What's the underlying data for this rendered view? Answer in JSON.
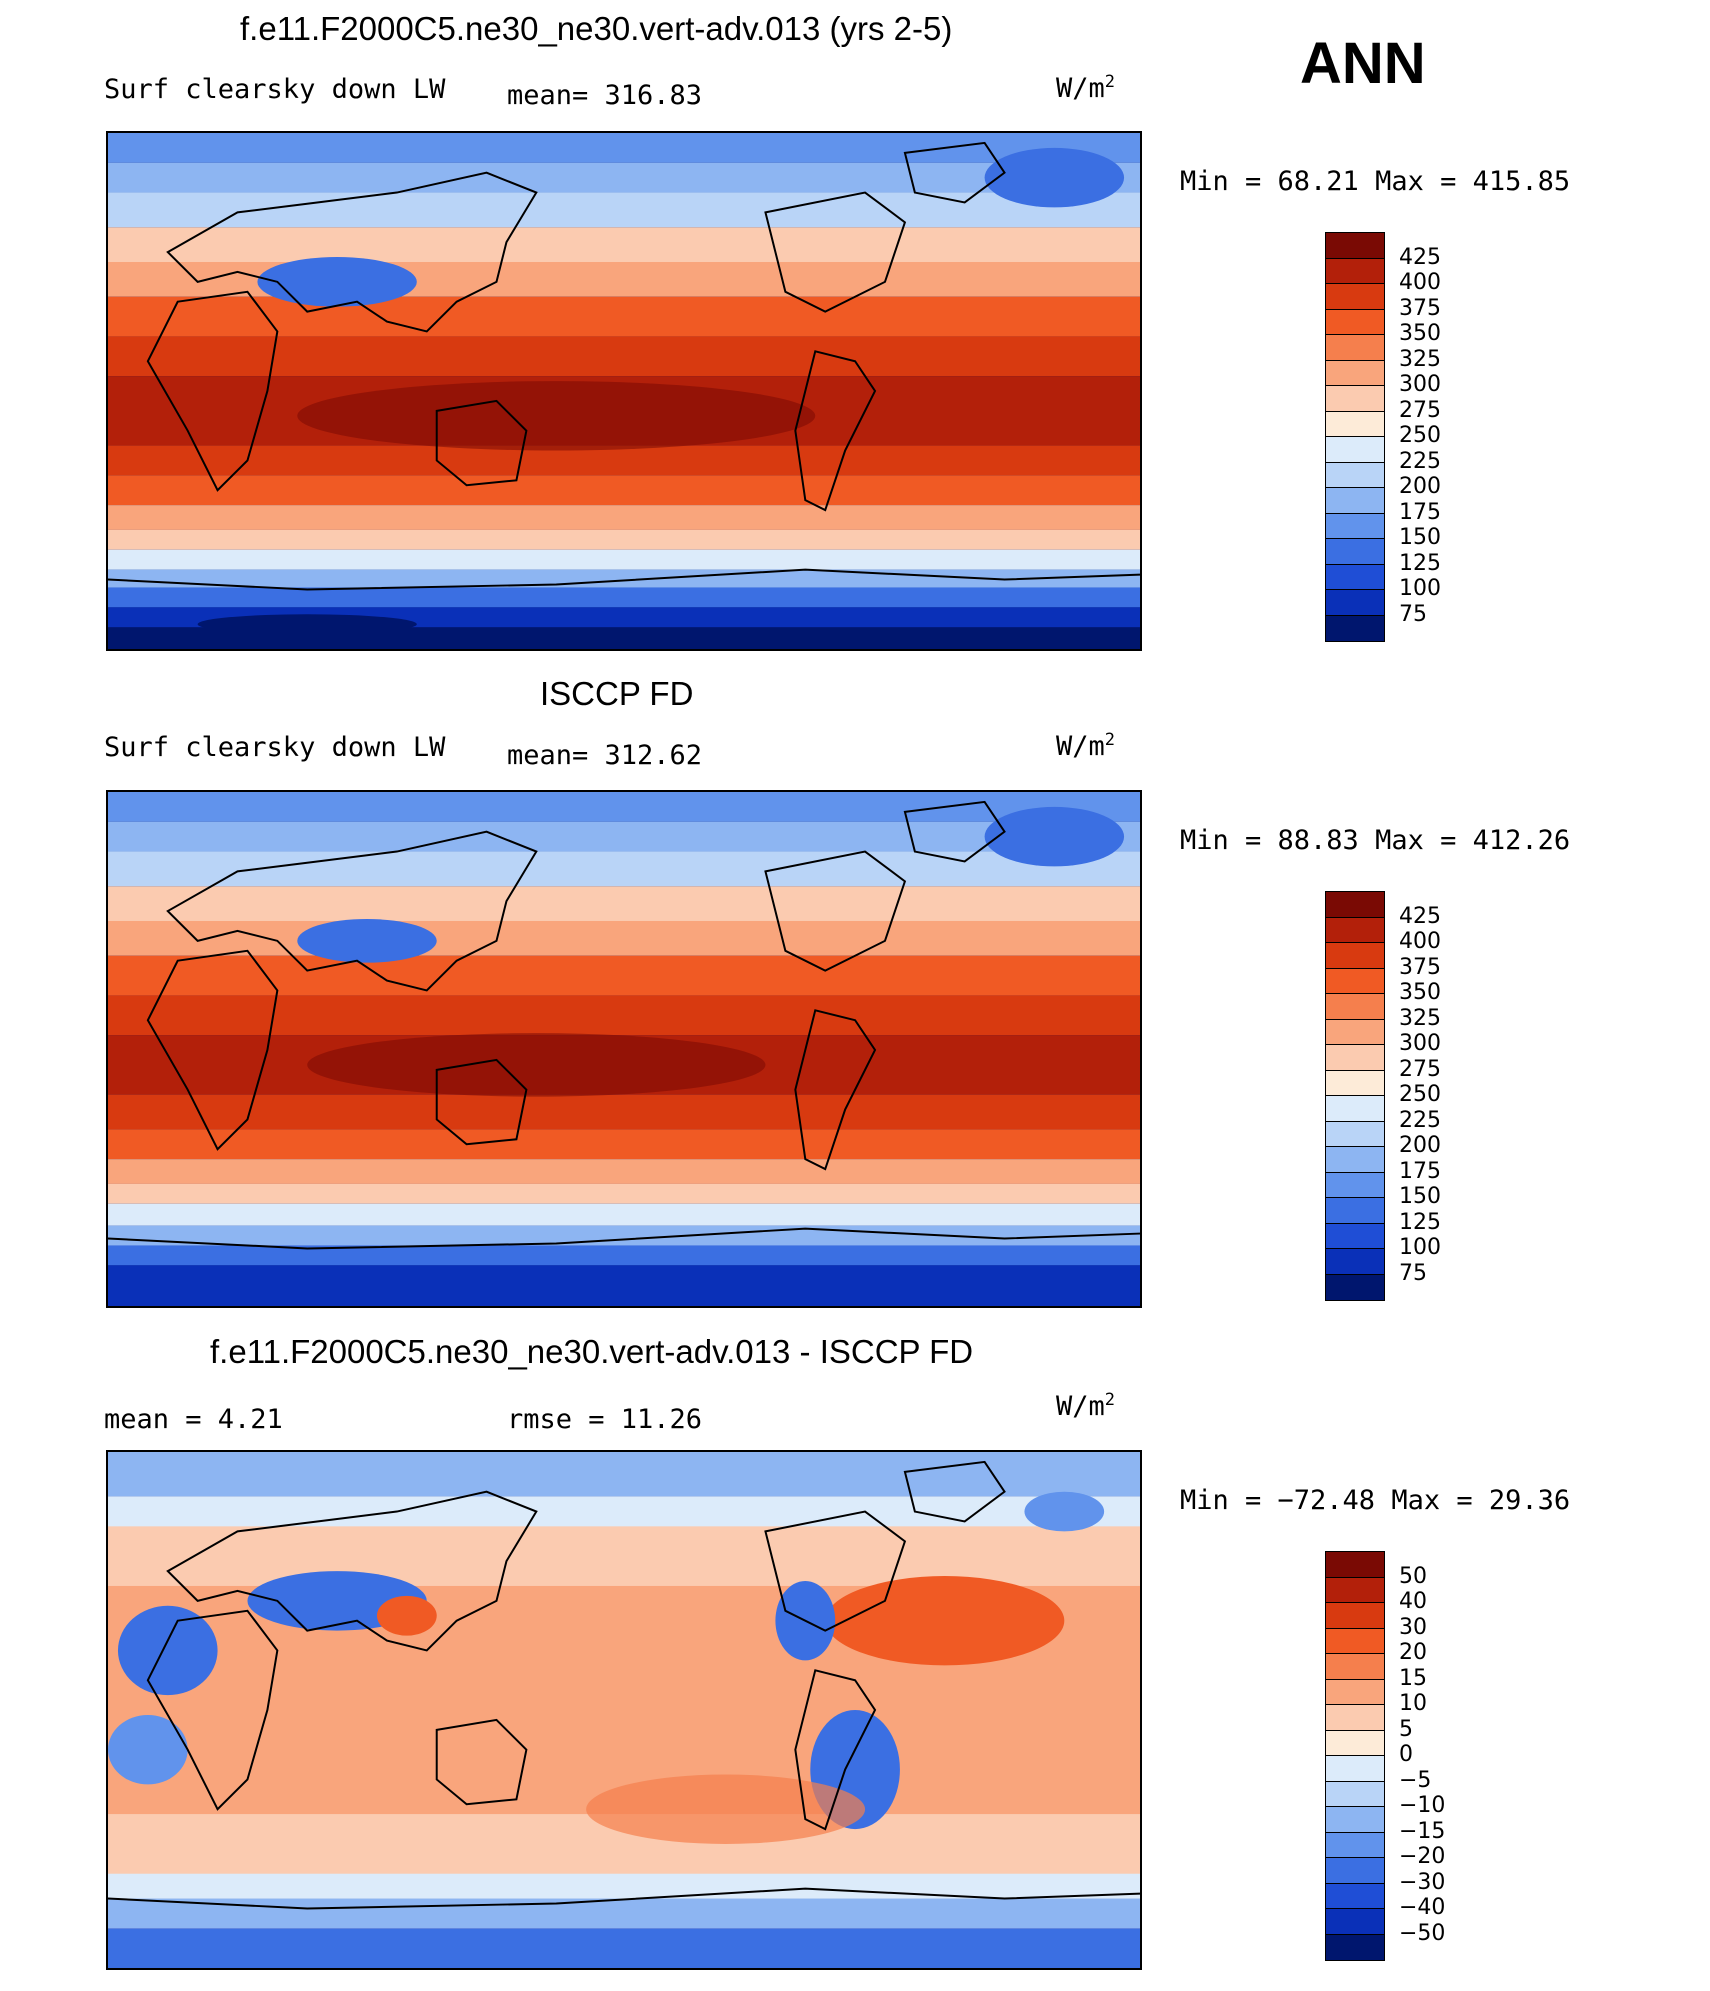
{
  "figure": {
    "season": "ANN",
    "unit_label": "W/m",
    "unit_sup": "2"
  },
  "panels": [
    {
      "title": "f.e11.F2000C5.ne30_ne30.vert-adv.013 (yrs 2-5)",
      "variable": "Surf clearsky down LW",
      "stat_left": "",
      "stat_mid": "mean= 316.83",
      "minmax": "Min =   68.21 Max = 415.85"
    },
    {
      "title": "ISCCP FD",
      "variable": "Surf clearsky down LW",
      "stat_left": "",
      "stat_mid": "mean= 312.62",
      "minmax": "Min =   88.83 Max = 412.26"
    },
    {
      "title": "f.e11.F2000C5.ne30_ne30.vert-adv.013 - ISCCP FD",
      "variable": "",
      "stat_left": "mean =    4.21",
      "stat_mid": "rmse =   11.26",
      "minmax": "Min = −72.48 Max =   29.36"
    }
  ],
  "colorbars": [
    {
      "labels": [
        "425",
        "400",
        "375",
        "350",
        "325",
        "300",
        "275",
        "250",
        "225",
        "200",
        "175",
        "150",
        "125",
        "100",
        "75"
      ],
      "colors": [
        "#7a0a04",
        "#b3200a",
        "#d83a10",
        "#f05a24",
        "#f57f4d",
        "#f9a57c",
        "#fbcbb0",
        "#fdebd8",
        "#dcebfa",
        "#b9d4f7",
        "#8db5f2",
        "#6193ec",
        "#3b6fe2",
        "#1f4ed6",
        "#0a30b8",
        "#00166e"
      ]
    },
    {
      "labels": [
        "425",
        "400",
        "375",
        "350",
        "325",
        "300",
        "275",
        "250",
        "225",
        "200",
        "175",
        "150",
        "125",
        "100",
        "75"
      ],
      "colors": [
        "#7a0a04",
        "#b3200a",
        "#d83a10",
        "#f05a24",
        "#f57f4d",
        "#f9a57c",
        "#fbcbb0",
        "#fdebd8",
        "#dcebfa",
        "#b9d4f7",
        "#8db5f2",
        "#6193ec",
        "#3b6fe2",
        "#1f4ed6",
        "#0a30b8",
        "#00166e"
      ]
    },
    {
      "labels": [
        "50",
        "40",
        "30",
        "20",
        "15",
        "10",
        "5",
        "0",
        "−5",
        "−10",
        "−15",
        "−20",
        "−30",
        "−40",
        "−50"
      ],
      "colors": [
        "#7a0a04",
        "#b3200a",
        "#d83a10",
        "#f05a24",
        "#f57f4d",
        "#f9a57c",
        "#fbcbb0",
        "#fdebd8",
        "#dcebfa",
        "#b9d4f7",
        "#8db5f2",
        "#6193ec",
        "#3b6fe2",
        "#1f4ed6",
        "#0a30b8",
        "#00166e"
      ]
    }
  ]
}
